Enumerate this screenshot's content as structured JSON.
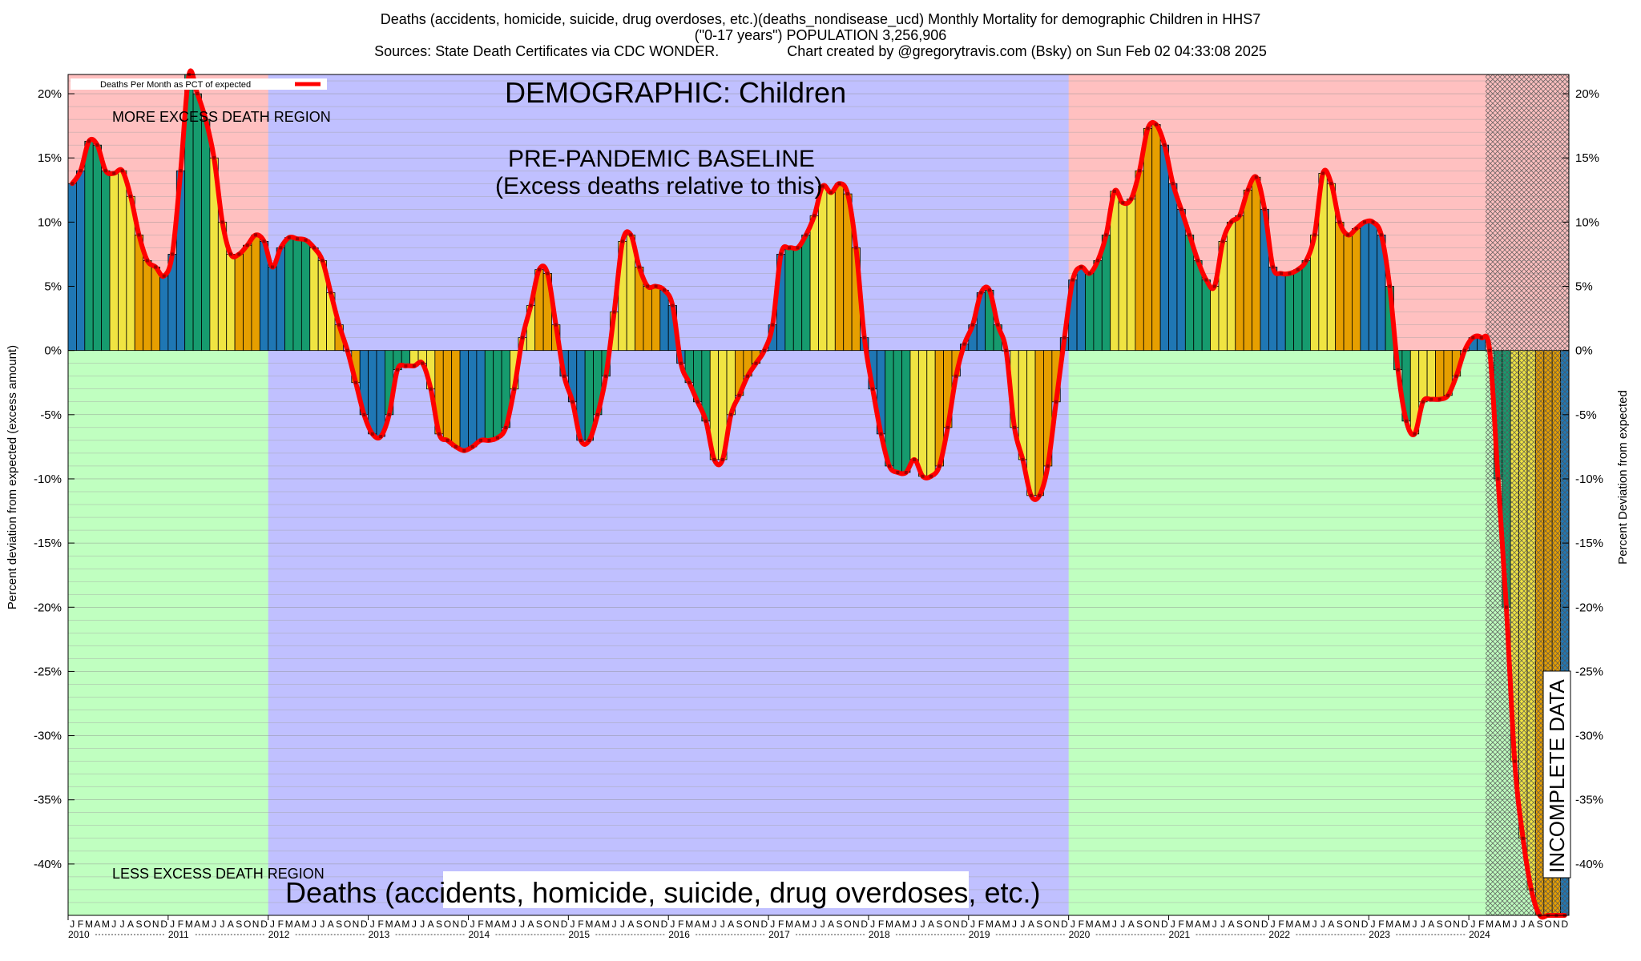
{
  "title_lines": [
    "Deaths (accidents, homicide, suicide, drug overdoses, etc.)(deaths_nondisease_ucd) Monthly Mortality for demographic Children in HHS7",
    "(\"0-17 years\") POPULATION 3,256,906",
    "Sources: State Death Certificates via CDC WONDER.                 Chart created by @gregorytravis.com (Bsky) on Sun Feb 02 04:33:08 2025"
  ],
  "labels": {
    "ylabel_left": "Percent deviation from expected (excess amount)",
    "ylabel_right": "Percent Deviation from expected",
    "more_region": "MORE EXCESS DEATH REGION",
    "less_region": "LESS EXCESS DEATH REGION",
    "demographic": "DEMOGRAPHIC: Children",
    "baseline_1": "PRE-PANDEMIC BASELINE",
    "baseline_2": "(Excess deaths relative to this)",
    "cause": "Deaths (accidents, homicide, suicide, drug overdoses, etc.)",
    "incomplete": "INCOMPLETE DATA",
    "legend": "Deaths Per Month as PCT of expected"
  },
  "colors": {
    "more_bg": "#ffc0c0",
    "less_bg": "#c0ffc0",
    "baseline_bg": "#c0c0ff",
    "line": "#ff0000",
    "winter": "#1f77b4",
    "spring": "#169b6e",
    "summer": "#f0e442",
    "fall": "#e69f00"
  },
  "chart_data": {
    "type": "bar",
    "ylim": [
      -44,
      21.5
    ],
    "yticks": [
      20,
      15,
      10,
      5,
      0,
      -5,
      -10,
      -15,
      -20,
      -25,
      -30,
      -35,
      -40
    ],
    "ytick_labels": [
      "20%",
      "15%",
      "10%",
      "5%",
      "0%",
      "-5%",
      "-10%",
      "-15%",
      "-20%",
      "-25%",
      "-30%",
      "-35%",
      "-40%"
    ],
    "month_letters": [
      "J",
      "F",
      "M",
      "A",
      "M",
      "J",
      "J",
      "A",
      "S",
      "O",
      "N",
      "D"
    ],
    "years": [
      "2010",
      "2011",
      "2012",
      "2013",
      "2014",
      "2015",
      "2016",
      "2017",
      "2018",
      "2019",
      "2020",
      "2021",
      "2022",
      "2023",
      "2024"
    ],
    "baseline_years": [
      "2012",
      "2013",
      "2014",
      "2015",
      "2016",
      "2017",
      "2018",
      "2019"
    ],
    "incomplete_from": "2024-03",
    "legend_position": "top-left",
    "grid": true,
    "series": [
      {
        "name": "Deaths Per Month as PCT of expected",
        "values": [
          13,
          14,
          16.3,
          16,
          14,
          13.8,
          14,
          12,
          9,
          7,
          6.5,
          5.8,
          7.5,
          14,
          21.5,
          20,
          18,
          15,
          10,
          7.5,
          7.5,
          8.2,
          9,
          8.5,
          6.5,
          8,
          8.8,
          8.7,
          8.6,
          8,
          7,
          4.5,
          2,
          0,
          -2.5,
          -5,
          -6.5,
          -6.7,
          -5,
          -1.5,
          -1.2,
          -1.2,
          -1,
          -3,
          -6.5,
          -7,
          -7.5,
          -7.8,
          -7.5,
          -7,
          -7,
          -6.8,
          -6,
          -3,
          1,
          3.5,
          6.3,
          6,
          2,
          -2,
          -4,
          -7,
          -7,
          -5,
          -2,
          3,
          8.5,
          9,
          6.5,
          5,
          5,
          4.7,
          3.5,
          -1,
          -2.5,
          -4,
          -5.5,
          -8.5,
          -8.5,
          -5,
          -3.5,
          -2,
          -1,
          0,
          2,
          7.5,
          8,
          8,
          9,
          10.5,
          12.8,
          12.3,
          13,
          12.2,
          8,
          1,
          -3,
          -6.5,
          -9,
          -9.5,
          -9.5,
          -8.5,
          -9.8,
          -9.8,
          -9,
          -6,
          -2,
          0.5,
          2,
          4.5,
          4.7,
          2,
          0,
          -6,
          -8.5,
          -11.3,
          -11.3,
          -9,
          -4,
          1,
          5.5,
          6.5,
          6,
          7,
          9,
          12.4,
          11.5,
          11.8,
          14,
          17.3,
          17.6,
          16,
          13,
          11,
          9,
          7,
          5.5,
          5,
          8.5,
          10,
          10.5,
          12.5,
          13.5,
          11,
          6.5,
          6,
          6,
          6.3,
          7,
          9,
          13.8,
          13,
          10,
          9,
          9.5,
          10,
          10,
          9,
          5,
          -1.5,
          -5.5,
          -6.5,
          -4,
          -3.8,
          -3.8,
          -3.5,
          -2,
          0,
          1,
          1,
          0,
          -10,
          -20,
          -32,
          -38,
          -42,
          -44,
          -44,
          -44,
          -44
        ]
      }
    ]
  }
}
